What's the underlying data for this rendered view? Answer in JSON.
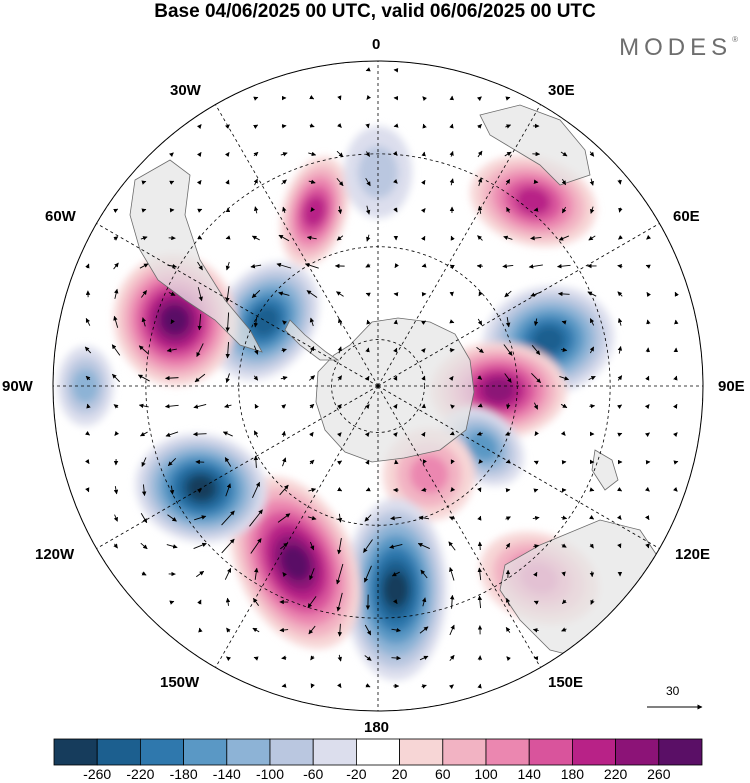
{
  "title": "Base 04/06/2025 00 UTC, valid 06/06/2025 00 UTC",
  "brand": "MODES",
  "brand_mark": "®",
  "longitude_labels": {
    "lon_0": "0",
    "lon_30e": "30E",
    "lon_60e": "60E",
    "lon_90e": "90E",
    "lon_120e": "120E",
    "lon_150e": "150E",
    "lon_180": "180",
    "lon_150w": "150W",
    "lon_120w": "120W",
    "lon_90w": "90W",
    "lon_60w": "60W",
    "lon_30w": "30W"
  },
  "vector_reference": "30",
  "colorbar": {
    "ticks": [
      "-260",
      "-220",
      "-180",
      "-140",
      "-100",
      "-60",
      "-20",
      "20",
      "60",
      "100",
      "140",
      "180",
      "220",
      "260"
    ],
    "colors": [
      "#163c5c",
      "#1c5f8f",
      "#2f78ad",
      "#5a98c5",
      "#8db3d6",
      "#bac7e0",
      "#dcdeed",
      "#ffffff",
      "#f7d6d6",
      "#f2b3c3",
      "#eb87b0",
      "#d9549c",
      "#b82287",
      "#8c1377",
      "#5a0f66"
    ]
  },
  "anomaly_centers": [
    {
      "name": "center-60w-70s",
      "value": -200
    },
    {
      "name": "center-20w-60s",
      "value": 180
    },
    {
      "name": "center-0-50s",
      "value": -60
    },
    {
      "name": "center-40e-45s",
      "value": 160
    },
    {
      "name": "center-70e-50s",
      "value": -220
    },
    {
      "name": "center-90e-60s",
      "value": 200
    },
    {
      "name": "center-110e-70s",
      "value": -120
    },
    {
      "name": "center-150e-70s",
      "value": 100
    },
    {
      "name": "center-140e-45s",
      "value": 120
    },
    {
      "name": "center-175e-55s",
      "value": -240
    },
    {
      "name": "center-150w-55s",
      "value": 230
    },
    {
      "name": "center-110w-55s",
      "value": -260
    },
    {
      "name": "center-80w-45s",
      "value": 240
    },
    {
      "name": "center-90w-30s",
      "value": -80
    }
  ]
}
